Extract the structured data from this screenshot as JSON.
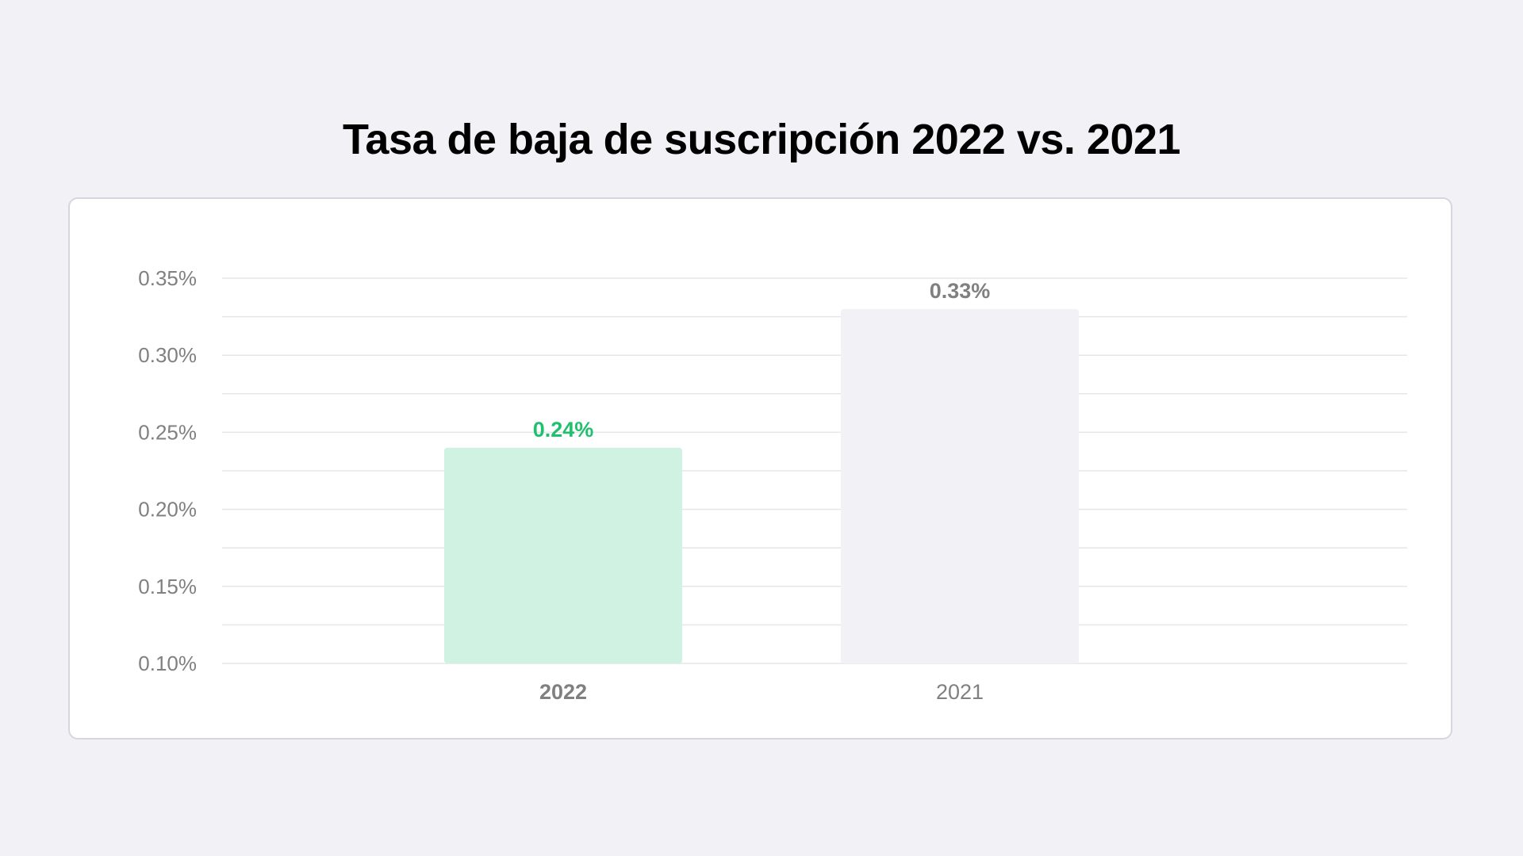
{
  "chart_data": {
    "type": "bar",
    "title": "Tasa de baja de suscripción 2022 vs. 2021",
    "categories": [
      "2022",
      "2021"
    ],
    "values": [
      0.24,
      0.33
    ],
    "value_labels": [
      "0.24%",
      "0.33%"
    ],
    "ylim": [
      0.1,
      0.35
    ],
    "yticks": [
      0.1,
      0.15,
      0.2,
      0.25,
      0.3,
      0.35
    ],
    "ytick_labels": [
      "0.10%",
      "0.15%",
      "0.20%",
      "0.25%",
      "0.30%",
      "0.35%"
    ],
    "xlabel": "",
    "ylabel": "",
    "grid": true,
    "legend": "none",
    "bar_colors": [
      "#d0f2e2",
      "#f2f2f6"
    ],
    "value_label_colors": [
      "#20c06e",
      "#808080"
    ],
    "highlighted_category": "2022"
  }
}
